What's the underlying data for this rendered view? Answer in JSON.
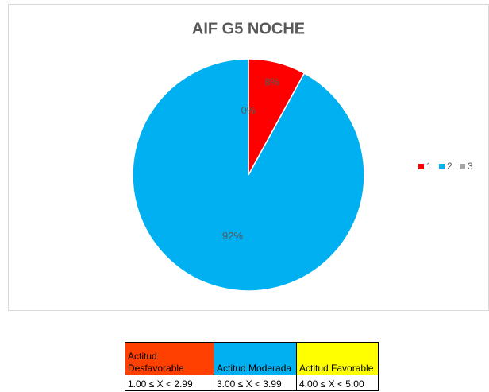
{
  "chart_data": {
    "type": "pie",
    "title": "AIF G5 NOCHE",
    "categories": [
      "1",
      "2",
      "3"
    ],
    "values": [
      8,
      92,
      0
    ],
    "value_labels": [
      "8%",
      "92%",
      "0%"
    ],
    "colors": [
      "#ff0000",
      "#00b0f0",
      "#a5a5a5"
    ],
    "legend": "right"
  },
  "table": {
    "rows": [
      [
        "Actitud Desfavorable",
        "Actitud Moderada",
        "Actitud Favorable"
      ],
      [
        "1.00 ≤ X < 2.99",
        "3.00  ≤ X < 3.99",
        "4.00 ≤ X < 5.00"
      ]
    ],
    "colors": [
      "#ff4000",
      "#00b0f0",
      "#ffff00"
    ]
  }
}
